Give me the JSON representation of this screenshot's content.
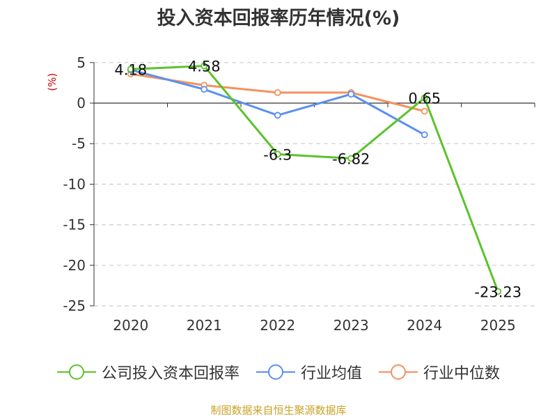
{
  "title": "投入资本回报率历年情况(%)",
  "source": "制图数据来自恒生聚源数据库",
  "chart_data": {
    "type": "line",
    "title": "投入资本回报率历年情况(%)",
    "ylabel": "(%)",
    "xlabel": "",
    "categories": [
      "2020",
      "2021",
      "2022",
      "2023",
      "2024",
      "2025"
    ],
    "ylim": [
      -25,
      5
    ],
    "yticks": [
      5,
      0,
      -5,
      -10,
      -15,
      -20,
      -25
    ],
    "ytick_labels": [
      "5",
      "0",
      "-5",
      "-10",
      "-15",
      "-20",
      "-25"
    ],
    "grid": true,
    "legend_position": "bottom",
    "series": [
      {
        "name": "公司投入资本回报率",
        "color": "#5cc22b",
        "values": [
          4.18,
          4.58,
          -6.3,
          -6.82,
          0.65,
          -23.23
        ],
        "labels": [
          "4.18",
          "4.58",
          "-6.3",
          "-6.82",
          "0.65",
          "-23.23"
        ]
      },
      {
        "name": "行业均值",
        "color": "#5b8ff0",
        "values": [
          4.1,
          1.7,
          -1.5,
          1.1,
          -3.9,
          null
        ]
      },
      {
        "name": "行业中位数",
        "color": "#f5915e",
        "values": [
          3.6,
          2.2,
          1.3,
          1.3,
          -1.0,
          null
        ]
      }
    ]
  }
}
